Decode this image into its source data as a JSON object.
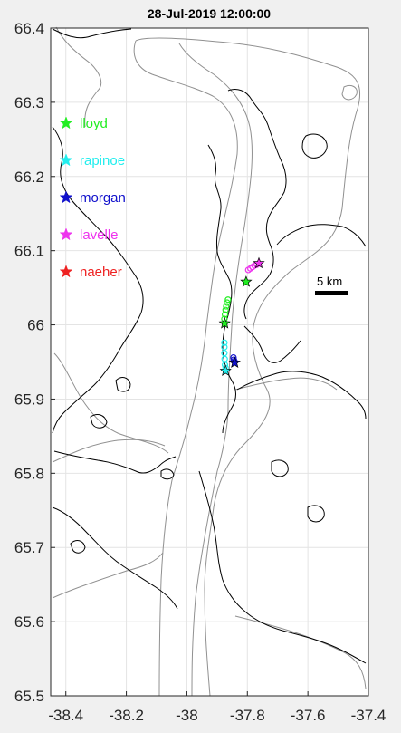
{
  "chart_data": {
    "type": "scatter",
    "title": "28-Jul-2019 12:00:00",
    "xlabel": "",
    "ylabel": "",
    "xlim": [
      -38.45,
      -37.4
    ],
    "ylim": [
      65.5,
      66.4
    ],
    "xticks": [
      -38.4,
      -38.2,
      -38,
      -37.8,
      -37.6,
      -37.4
    ],
    "xtick_labels": [
      "-38.4",
      "-38.2",
      "-38",
      "-37.8",
      "-37.6",
      "-37.4"
    ],
    "yticks": [
      65.5,
      65.6,
      65.7,
      65.8,
      65.9,
      66.0,
      66.1,
      66.2,
      66.3,
      66.4
    ],
    "ytick_labels": [
      "65.5",
      "65.6",
      "65.7",
      "65.8",
      "65.9",
      "66",
      "66.1",
      "66.2",
      "66.3",
      "66.4"
    ],
    "grid": true,
    "legend_position": "top-left inside",
    "scale_bar_label": "5 km",
    "series": [
      {
        "name": "lloyd",
        "color": "#22ee22",
        "current": [
          -37.875,
          66.002
        ],
        "track": [
          [
            -37.876,
            66.008
          ],
          [
            -37.874,
            66.014
          ],
          [
            -37.872,
            66.02
          ],
          [
            -37.87,
            66.025
          ],
          [
            -37.867,
            66.03
          ],
          [
            -37.864,
            66.034
          ]
        ]
      },
      {
        "name": "rapinoe",
        "color": "#22eeee",
        "current": [
          -37.872,
          65.938
        ],
        "track": [
          [
            -37.874,
            65.946
          ],
          [
            -37.875,
            65.954
          ],
          [
            -37.876,
            65.962
          ],
          [
            -37.876,
            65.97
          ],
          [
            -37.876,
            65.976
          ],
          [
            -37.872,
            65.942
          ]
        ]
      },
      {
        "name": "morgan",
        "color": "#1010cc",
        "current": [
          -37.842,
          65.949
        ],
        "track": [
          [
            -37.846,
            65.956
          ],
          [
            -37.845,
            65.953
          ],
          [
            -37.843,
            65.951
          ]
        ]
      },
      {
        "name": "lavelle",
        "color": "#ee33ee",
        "current": [
          -37.762,
          66.083
        ],
        "track": [
          [
            -37.797,
            66.074
          ],
          [
            -37.79,
            66.076
          ],
          [
            -37.783,
            66.078
          ],
          [
            -37.776,
            66.08
          ],
          [
            -37.769,
            66.081
          ]
        ]
      },
      {
        "name": "naeher",
        "color": "#ee2222",
        "current": null,
        "track": []
      }
    ],
    "extra_markers": [
      {
        "color": "#22ee22",
        "point": [
          -37.804,
          66.058
        ]
      }
    ]
  }
}
